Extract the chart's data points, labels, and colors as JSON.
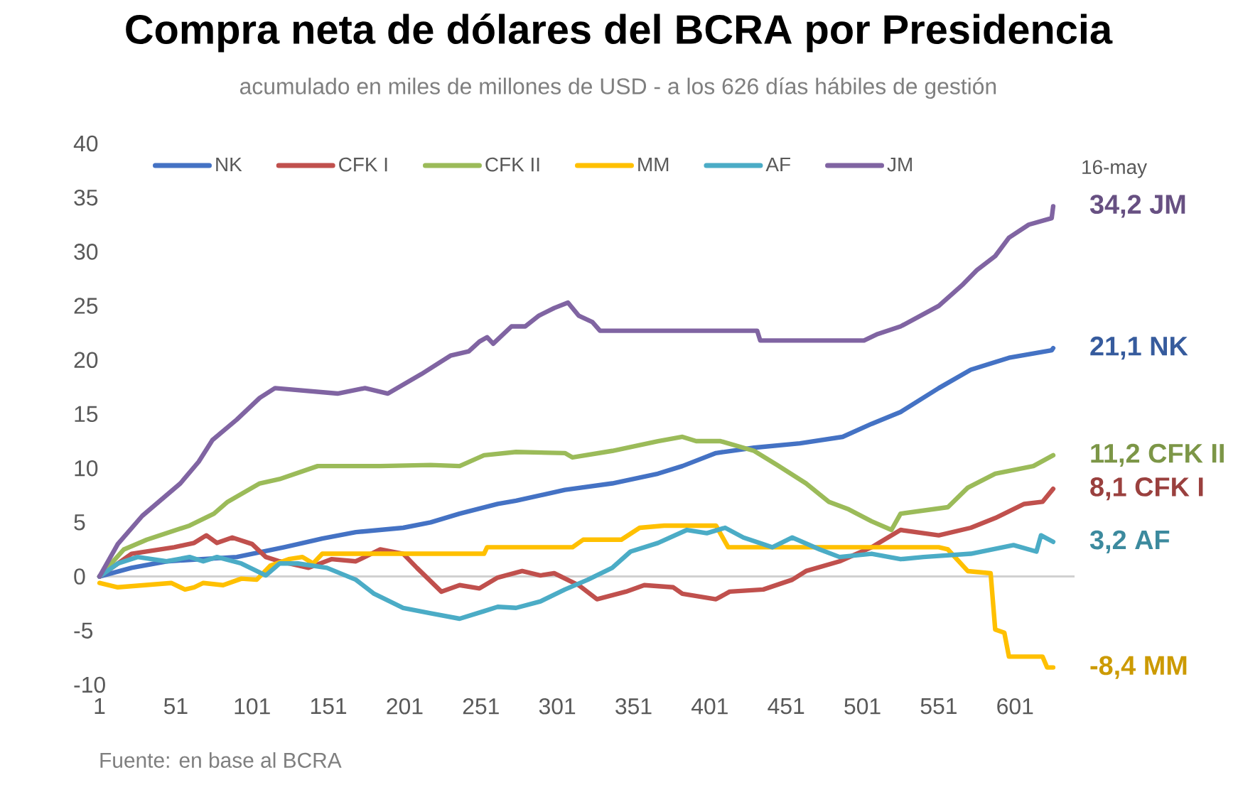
{
  "chart_data": {
    "type": "line",
    "title": "Compra neta de dólares del BCRA por Presidencia",
    "subtitle": "acumulado en miles de millones de USD - a los 626 días hábiles de gestión",
    "xlim": [
      1,
      640
    ],
    "xticks": [
      1,
      51,
      101,
      151,
      201,
      251,
      301,
      351,
      401,
      451,
      501,
      551,
      601
    ],
    "ylim": [
      -10,
      40
    ],
    "yticks": [
      -10,
      -5,
      0,
      5,
      10,
      15,
      20,
      25,
      30,
      35,
      40
    ],
    "legend": "top",
    "marker": "none",
    "line_style": "solid",
    "annotations": [
      "16-may",
      "Fuente: en base al BCRA"
    ],
    "series": [
      {
        "name": "NK",
        "color": "#4472c4",
        "x": [
          1,
          22,
          45,
          91,
          122,
          147,
          169,
          200,
          218,
          237,
          262,
          274,
          306,
          337,
          367,
          383,
          405,
          430,
          460,
          488,
          507,
          526,
          551,
          572,
          597,
          625,
          626
        ],
        "values": [
          0,
          0.8,
          1.4,
          1.8,
          2.7,
          3.5,
          4.1,
          4.5,
          5.0,
          5.8,
          6.7,
          7.0,
          8.0,
          8.6,
          9.5,
          10.2,
          11.4,
          11.9,
          12.3,
          12.9,
          14.1,
          15.2,
          17.4,
          19.1,
          20.2,
          20.9,
          21.1
        ],
        "value_labels": [
          null,
          null,
          null,
          null,
          null,
          null,
          null,
          null,
          null,
          null,
          null,
          null,
          null,
          null,
          null,
          null,
          null,
          null,
          null,
          null,
          null,
          null,
          null,
          null,
          null,
          null,
          "21,1"
        ]
      },
      {
        "name": "CFK I",
        "color": "#c0504d",
        "x": [
          1,
          22,
          50,
          63,
          71,
          78,
          88,
          101,
          110,
          119,
          138,
          153,
          169,
          185,
          200,
          209,
          225,
          237,
          250,
          262,
          278,
          290,
          299,
          315,
          327,
          346,
          358,
          377,
          383,
          405,
          414,
          436,
          455,
          464,
          486,
          507,
          526,
          551,
          572,
          588,
          607,
          619,
          626
        ],
        "values": [
          0,
          2.1,
          2.7,
          3.1,
          3.8,
          3.1,
          3.6,
          3.0,
          1.8,
          1.4,
          0.8,
          1.6,
          1.4,
          2.5,
          2.1,
          0.8,
          -1.4,
          -0.8,
          -1.1,
          -0.1,
          0.5,
          0.1,
          0.3,
          -0.8,
          -2.1,
          -1.4,
          -0.8,
          -1.0,
          -1.6,
          -2.1,
          -1.4,
          -1.2,
          -0.3,
          0.5,
          1.4,
          2.7,
          4.3,
          3.8,
          4.5,
          5.4,
          6.7,
          6.9,
          8.1
        ],
        "value_labels": [
          null,
          null,
          null,
          null,
          null,
          null,
          null,
          null,
          null,
          null,
          null,
          null,
          null,
          null,
          null,
          null,
          null,
          null,
          null,
          null,
          null,
          null,
          null,
          null,
          null,
          null,
          null,
          null,
          null,
          null,
          null,
          null,
          null,
          null,
          null,
          null,
          null,
          null,
          null,
          null,
          null,
          null,
          "8,1"
        ]
      },
      {
        "name": "CFK II",
        "color": "#9bbb59",
        "x": [
          1,
          17,
          32,
          60,
          76,
          85,
          106,
          119,
          144,
          185,
          218,
          237,
          253,
          274,
          306,
          311,
          337,
          367,
          383,
          392,
          408,
          430,
          445,
          464,
          479,
          492,
          507,
          520,
          526,
          557,
          570,
          588,
          613,
          626
        ],
        "values": [
          0,
          2.5,
          3.4,
          4.7,
          5.8,
          6.9,
          8.6,
          9.0,
          10.2,
          10.2,
          10.3,
          10.2,
          11.2,
          11.5,
          11.4,
          11.0,
          11.6,
          12.5,
          12.9,
          12.5,
          12.5,
          11.6,
          10.3,
          8.6,
          6.9,
          6.2,
          5.1,
          4.3,
          5.8,
          6.4,
          8.2,
          9.5,
          10.2,
          11.2
        ],
        "value_labels": [
          null,
          null,
          null,
          null,
          null,
          null,
          null,
          null,
          null,
          null,
          null,
          null,
          null,
          null,
          null,
          null,
          null,
          null,
          null,
          null,
          null,
          null,
          null,
          null,
          null,
          null,
          null,
          null,
          null,
          null,
          null,
          null,
          null,
          "11,2"
        ]
      },
      {
        "name": "MM",
        "color": "#ffc000",
        "x": [
          1,
          13,
          48,
          57,
          63,
          69,
          82,
          94,
          104,
          113,
          125,
          134,
          141,
          147,
          253,
          255,
          311,
          318,
          343,
          355,
          371,
          405,
          413,
          523,
          551,
          557,
          570,
          585,
          588,
          594,
          597,
          619,
          622,
          626
        ],
        "values": [
          -0.6,
          -1.0,
          -0.6,
          -1.2,
          -1.0,
          -0.6,
          -0.8,
          -0.2,
          -0.3,
          1.0,
          1.6,
          1.8,
          1.2,
          2.1,
          2.1,
          2.7,
          2.7,
          3.4,
          3.4,
          4.5,
          4.7,
          4.7,
          2.7,
          2.7,
          2.7,
          2.5,
          0.5,
          0.3,
          -4.9,
          -5.2,
          -7.4,
          -7.4,
          -8.4,
          -8.4
        ],
        "value_labels": [
          null,
          null,
          null,
          null,
          null,
          null,
          null,
          null,
          null,
          null,
          null,
          null,
          null,
          null,
          null,
          null,
          null,
          null,
          null,
          null,
          null,
          null,
          null,
          null,
          null,
          null,
          null,
          null,
          null,
          null,
          null,
          null,
          null,
          "-8,4"
        ]
      },
      {
        "name": "AF",
        "color": "#4bacc6",
        "x": [
          1,
          13,
          26,
          45,
          60,
          69,
          78,
          94,
          110,
          119,
          131,
          150,
          169,
          181,
          200,
          218,
          237,
          253,
          262,
          274,
          290,
          306,
          321,
          337,
          349,
          367,
          386,
          399,
          411,
          423,
          442,
          455,
          473,
          486,
          507,
          526,
          541,
          572,
          600,
          615,
          618,
          626
        ],
        "values": [
          0,
          1.2,
          1.8,
          1.4,
          1.8,
          1.4,
          1.8,
          1.2,
          0.1,
          1.2,
          1.2,
          0.8,
          -0.3,
          -1.6,
          -2.9,
          -3.4,
          -3.9,
          -3.2,
          -2.8,
          -2.9,
          -2.3,
          -1.2,
          -0.3,
          0.8,
          2.3,
          3.1,
          4.3,
          4.0,
          4.5,
          3.6,
          2.7,
          3.6,
          2.5,
          1.8,
          2.1,
          1.6,
          1.8,
          2.1,
          2.9,
          2.3,
          3.8,
          3.2
        ],
        "value_labels": [
          null,
          null,
          null,
          null,
          null,
          null,
          null,
          null,
          null,
          null,
          null,
          null,
          null,
          null,
          null,
          null,
          null,
          null,
          null,
          null,
          null,
          null,
          null,
          null,
          null,
          null,
          null,
          null,
          null,
          null,
          null,
          null,
          null,
          null,
          null,
          null,
          null,
          null,
          null,
          null,
          null,
          "3,2"
        ]
      },
      {
        "name": "JM",
        "color": "#8064a2",
        "x": [
          1,
          13,
          29,
          54,
          66,
          75,
          91,
          106,
          116,
          157,
          175,
          190,
          212,
          231,
          243,
          250,
          255,
          259,
          271,
          280,
          289,
          299,
          308,
          315,
          324,
          329,
          432,
          434,
          502,
          511,
          526,
          551,
          567,
          576,
          588,
          597,
          610,
          625,
          626
        ],
        "values": [
          0,
          3.0,
          5.6,
          8.6,
          10.6,
          12.6,
          14.5,
          16.5,
          17.4,
          16.9,
          17.4,
          16.9,
          18.7,
          20.4,
          20.8,
          21.7,
          22.1,
          21.5,
          23.1,
          23.1,
          24.1,
          24.8,
          25.3,
          24.1,
          23.5,
          22.7,
          22.7,
          21.8,
          21.8,
          22.4,
          23.1,
          25.0,
          27.0,
          28.3,
          29.6,
          31.3,
          32.5,
          33.1,
          34.2
        ],
        "value_labels": [
          null,
          null,
          null,
          null,
          null,
          null,
          null,
          null,
          null,
          null,
          null,
          null,
          null,
          null,
          null,
          null,
          null,
          null,
          null,
          null,
          null,
          null,
          null,
          null,
          null,
          null,
          null,
          null,
          null,
          null,
          null,
          null,
          null,
          null,
          null,
          null,
          null,
          null,
          "34,2"
        ]
      }
    ]
  }
}
